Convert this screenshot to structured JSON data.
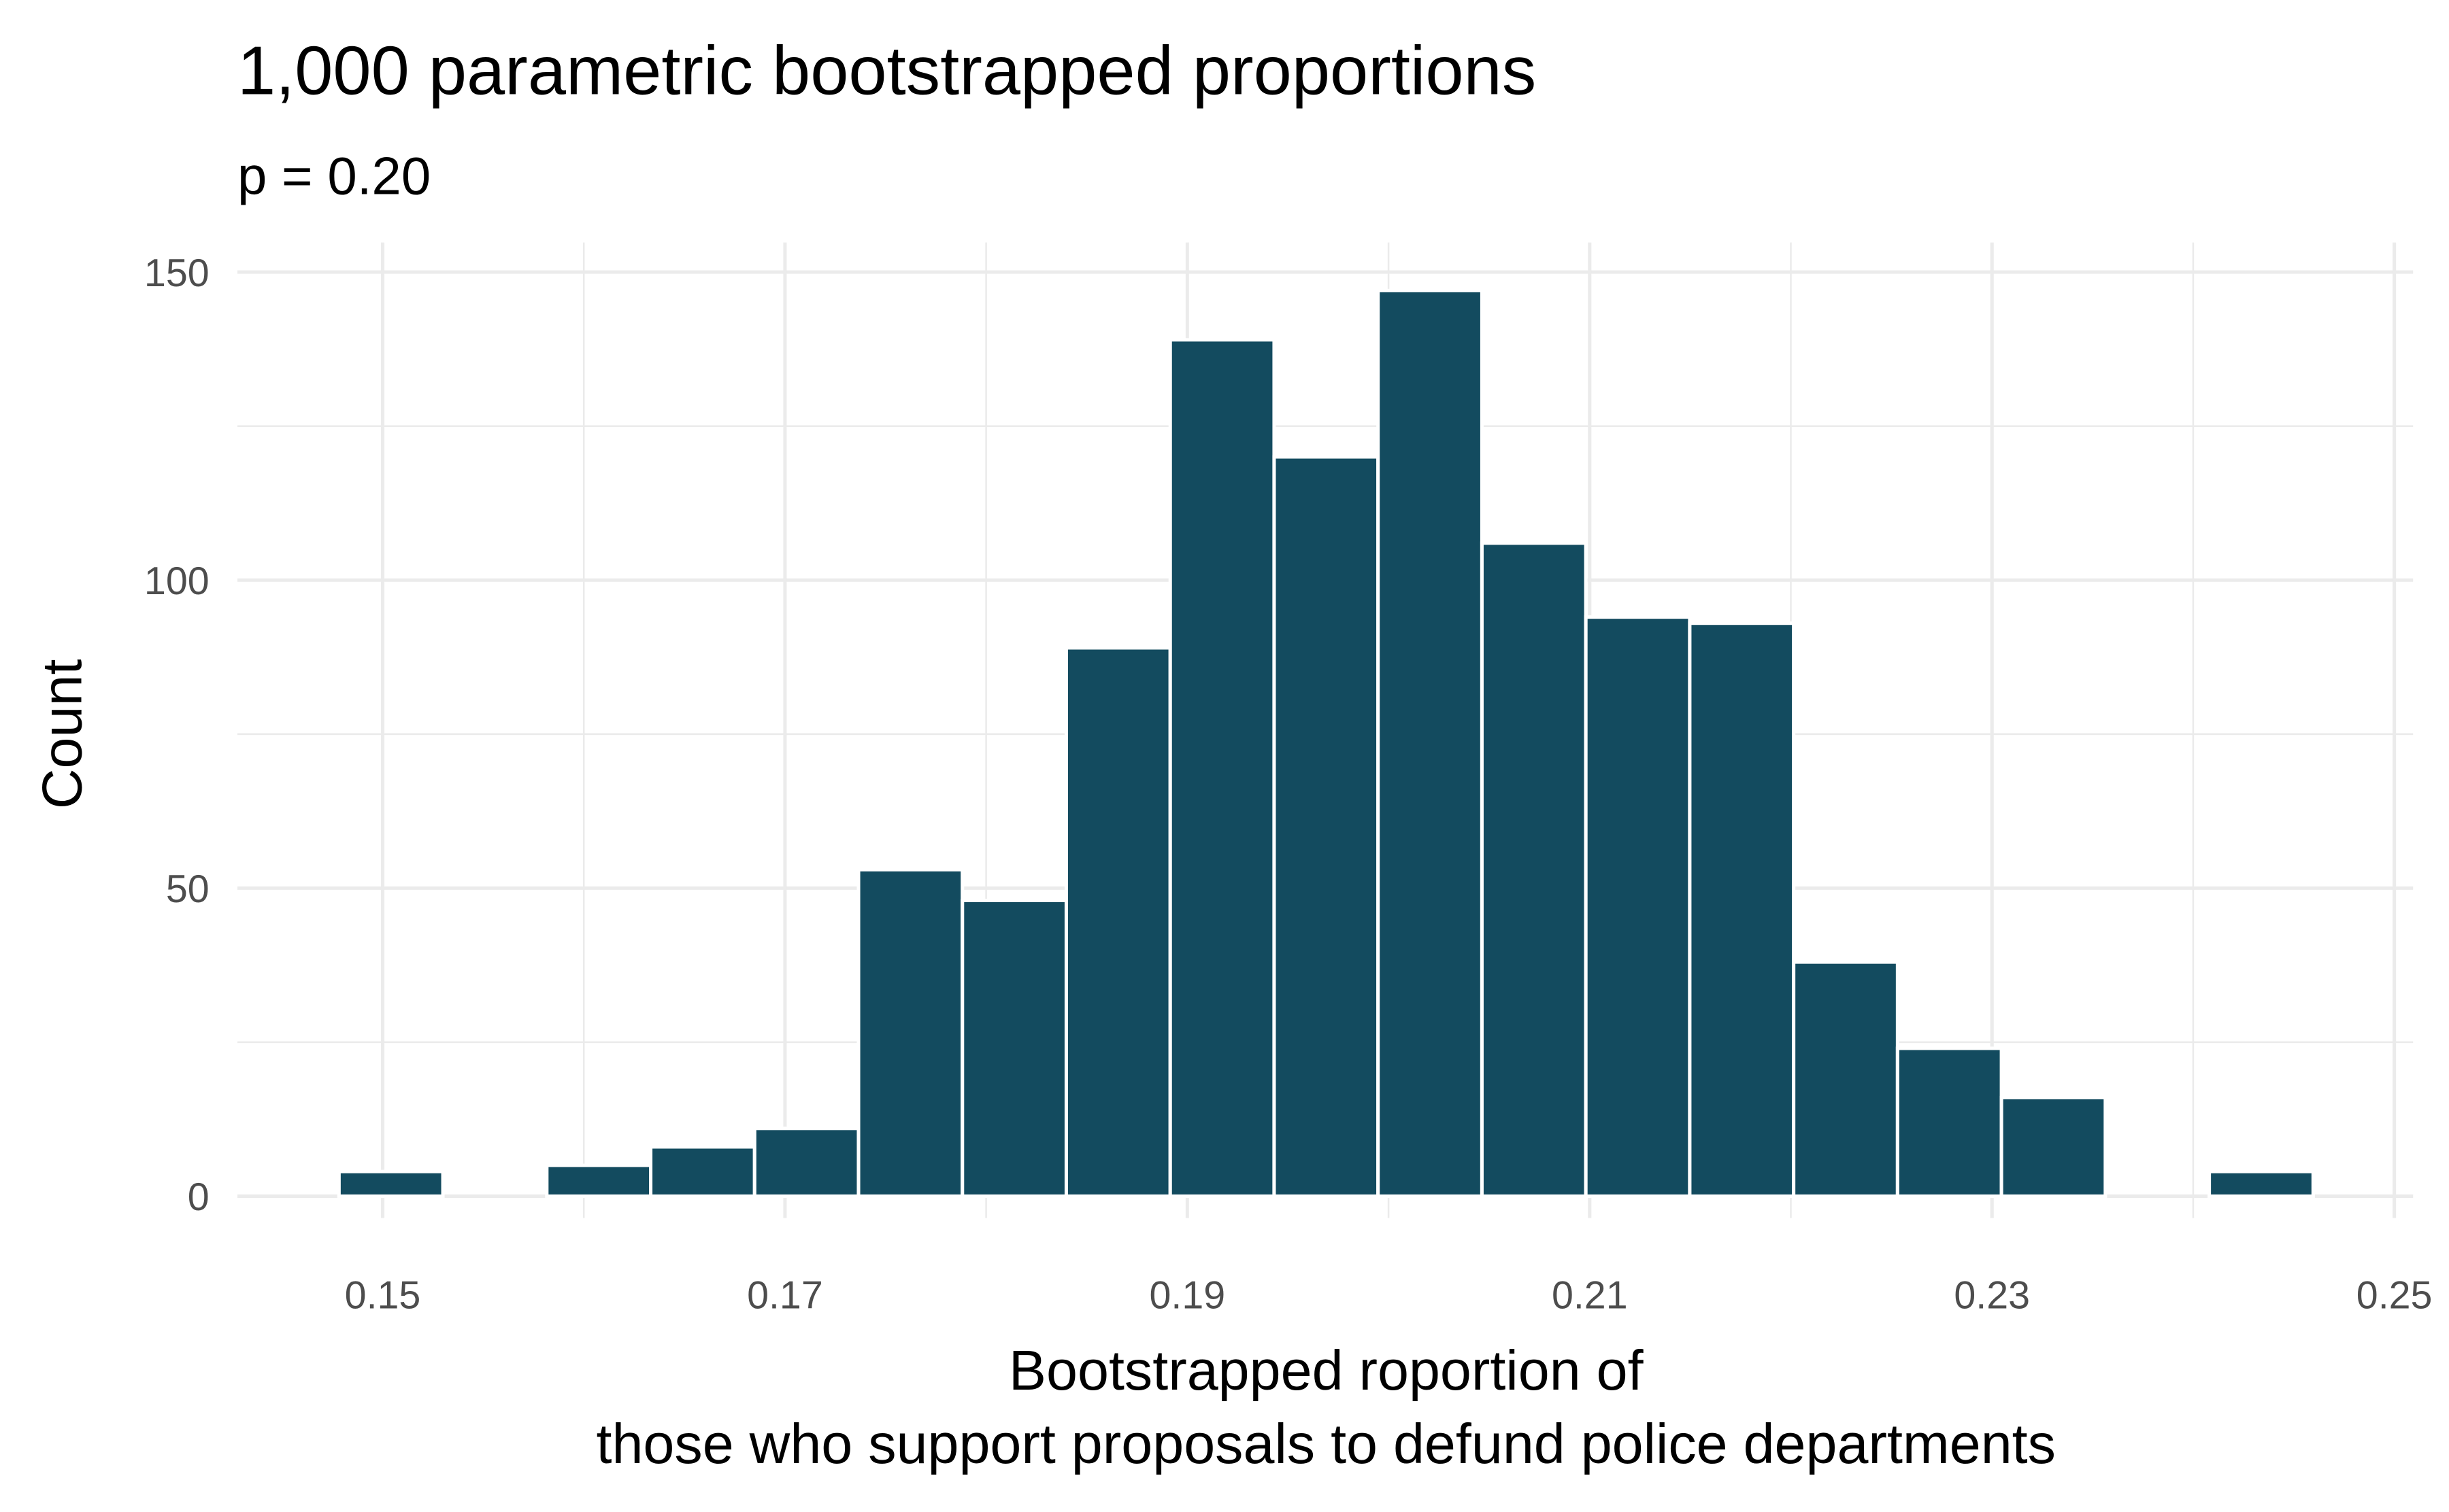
{
  "chart_data": {
    "type": "bar",
    "subtype": "histogram",
    "title": "1,000 parametric bootstrapped proportions",
    "subtitle": "p = 0.20",
    "xlabel_lines": [
      "Bootstrapped roportion of",
      "those who support proposals to defund police departments"
    ],
    "ylabel": "Count",
    "xlim": [
      0.1435,
      0.2505
    ],
    "ylim": [
      0,
      155
    ],
    "x_ticks": [
      0.15,
      0.17,
      0.19,
      0.21,
      0.23,
      0.25
    ],
    "x_tick_labels": [
      "0.15",
      "0.17",
      "0.19",
      "0.21",
      "0.23",
      "0.25"
    ],
    "y_ticks": [
      0,
      50,
      100,
      150
    ],
    "y_tick_labels": [
      "0",
      "50",
      "100",
      "150"
    ],
    "grid": true,
    "bin_start": 0.14783,
    "bin_width": 0.005165,
    "values": [
      4,
      0,
      5,
      8,
      11,
      53,
      48,
      89,
      139,
      120,
      147,
      106,
      94,
      93,
      38,
      24,
      16,
      0,
      4
    ],
    "bar_color": "#134b5f",
    "bar_outline": "#ffffff"
  }
}
